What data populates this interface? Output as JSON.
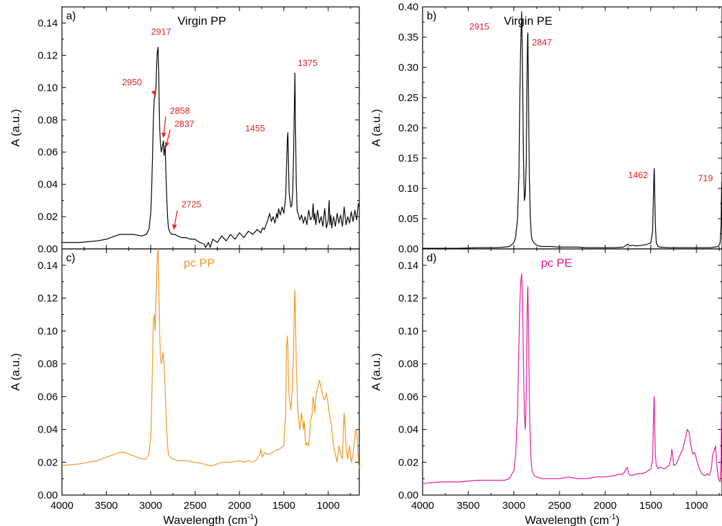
{
  "chart_data": [
    {
      "type": "line",
      "panel_label": "a)",
      "title": "Virgin PP",
      "xlabel": "",
      "ylabel": "A (a.u.)",
      "xlim": [
        4000,
        650
      ],
      "ylim": [
        0,
        0.15
      ],
      "x_ticks": [],
      "y_ticks": [
        "0.00",
        "0.02",
        "0.04",
        "0.06",
        "0.08",
        "0.10",
        "0.12",
        "0.14"
      ],
      "color": "#000000",
      "series": [
        {
          "x": [
            4000,
            3800,
            3600,
            3500,
            3400,
            3350,
            3300,
            3200,
            3100,
            3050,
            3020,
            3000,
            2990,
            2980,
            2970,
            2960,
            2950,
            2940,
            2935,
            2930,
            2925,
            2920,
            2917,
            2910,
            2905,
            2900,
            2890,
            2880,
            2870,
            2860,
            2858,
            2855,
            2850,
            2845,
            2840,
            2837,
            2830,
            2820,
            2810,
            2800,
            2780,
            2760,
            2740,
            2725,
            2700,
            2650,
            2600,
            2550,
            2500,
            2450,
            2400,
            2380,
            2350,
            2330,
            2300,
            2250,
            2200,
            2150,
            2100,
            2050,
            2000,
            1950,
            1900,
            1850,
            1800,
            1760,
            1740,
            1720,
            1700,
            1680,
            1660,
            1640,
            1620,
            1600,
            1580,
            1570,
            1560,
            1540,
            1520,
            1500,
            1480,
            1470,
            1460,
            1455,
            1450,
            1440,
            1430,
            1420,
            1410,
            1400,
            1390,
            1380,
            1375,
            1370,
            1360,
            1350,
            1340,
            1320,
            1300,
            1280,
            1260,
            1240,
            1220,
            1200,
            1180,
            1170,
            1160,
            1150,
            1140,
            1120,
            1100,
            1080,
            1060,
            1040,
            1020,
            1000,
            990,
            980,
            970,
            960,
            940,
            920,
            900,
            880,
            860,
            840,
            820,
            800,
            780,
            760,
            740,
            720,
            700,
            680,
            660,
            650
          ],
          "y": [
            0.004,
            0.004,
            0.005,
            0.006,
            0.008,
            0.009,
            0.009,
            0.009,
            0.008,
            0.009,
            0.012,
            0.022,
            0.035,
            0.055,
            0.08,
            0.093,
            0.095,
            0.1,
            0.11,
            0.118,
            0.122,
            0.124,
            0.125,
            0.11,
            0.09,
            0.075,
            0.066,
            0.06,
            0.063,
            0.066,
            0.067,
            0.064,
            0.058,
            0.06,
            0.062,
            0.064,
            0.05,
            0.032,
            0.02,
            0.013,
            0.01,
            0.009,
            0.009,
            0.009,
            0.008,
            0.007,
            0.007,
            0.006,
            0.006,
            0.004,
            0.003,
            0.001,
            0.004,
            0.001,
            0.006,
            0.004,
            0.008,
            0.005,
            0.009,
            0.006,
            0.01,
            0.007,
            0.011,
            0.009,
            0.012,
            0.01,
            0.013,
            0.012,
            0.015,
            0.018,
            0.022,
            0.017,
            0.02,
            0.016,
            0.022,
            0.019,
            0.025,
            0.021,
            0.026,
            0.022,
            0.032,
            0.05,
            0.068,
            0.072,
            0.06,
            0.035,
            0.03,
            0.026,
            0.027,
            0.035,
            0.06,
            0.095,
            0.109,
            0.08,
            0.04,
            0.024,
            0.022,
            0.018,
            0.021,
            0.016,
            0.02,
            0.015,
            0.024,
            0.018,
            0.02,
            0.028,
            0.018,
            0.022,
            0.015,
            0.024,
            0.016,
            0.02,
            0.014,
            0.025,
            0.013,
            0.018,
            0.03,
            0.015,
            0.021,
            0.013,
            0.02,
            0.014,
            0.022,
            0.016,
            0.021,
            0.014,
            0.026,
            0.015,
            0.02,
            0.016,
            0.023,
            0.017,
            0.024,
            0.018,
            0.028,
            0.026
          ]
        }
      ],
      "annotations": [
        {
          "text": "2917",
          "x": 2917,
          "y": 0.125,
          "arrow": false
        },
        {
          "text": "2950",
          "x": 2950,
          "y": 0.095,
          "arrow": true
        },
        {
          "text": "2858",
          "x": 2858,
          "y": 0.067,
          "arrow": true
        },
        {
          "text": "2837",
          "x": 2837,
          "y": 0.064,
          "arrow": true
        },
        {
          "text": "2725",
          "x": 2725,
          "y": 0.009,
          "arrow": true
        },
        {
          "text": "1455",
          "x": 1455,
          "y": 0.072,
          "arrow": false
        },
        {
          "text": "1375",
          "x": 1375,
          "y": 0.109,
          "arrow": false
        }
      ]
    },
    {
      "type": "line",
      "panel_label": "b)",
      "title": "Virgin PE",
      "xlabel": "",
      "ylabel": "A (a.u.)",
      "xlim": [
        4000,
        720
      ],
      "ylim": [
        0,
        0.4
      ],
      "x_ticks": [],
      "y_ticks": [
        "0.00",
        "0.05",
        "0.10",
        "0.15",
        "0.20",
        "0.25",
        "0.30",
        "0.35",
        "0.40"
      ],
      "color": "#000000",
      "series": [
        {
          "x": [
            4000,
            3800,
            3600,
            3400,
            3200,
            3100,
            3050,
            3000,
            2980,
            2960,
            2945,
            2935,
            2925,
            2915,
            2905,
            2895,
            2885,
            2875,
            2865,
            2855,
            2850,
            2847,
            2840,
            2830,
            2820,
            2810,
            2800,
            2780,
            2750,
            2700,
            2600,
            2500,
            2400,
            2300,
            2200,
            2100,
            2000,
            1900,
            1800,
            1750,
            1740,
            1720,
            1700,
            1650,
            1600,
            1550,
            1500,
            1480,
            1470,
            1465,
            1462,
            1458,
            1450,
            1440,
            1420,
            1400,
            1300,
            1200,
            1100,
            1000,
            950,
            900,
            850,
            800,
            760,
            740,
            730,
            725,
            722,
            720
          ],
          "y": [
            0.001,
            0.001,
            0.001,
            0.002,
            0.002,
            0.003,
            0.004,
            0.01,
            0.02,
            0.05,
            0.12,
            0.25,
            0.34,
            0.392,
            0.3,
            0.15,
            0.08,
            0.09,
            0.14,
            0.3,
            0.35,
            0.357,
            0.25,
            0.12,
            0.05,
            0.025,
            0.015,
            0.01,
            0.006,
            0.004,
            0.004,
            0.003,
            0.003,
            0.003,
            0.002,
            0.002,
            0.002,
            0.002,
            0.003,
            0.008,
            0.006,
            0.005,
            0.006,
            0.005,
            0.006,
            0.007,
            0.01,
            0.03,
            0.09,
            0.125,
            0.133,
            0.1,
            0.04,
            0.01,
            0.004,
            0.003,
            0.002,
            0.002,
            0.002,
            0.002,
            0.002,
            0.002,
            0.002,
            0.003,
            0.004,
            0.01,
            0.04,
            0.09,
            0.11,
            0.112
          ]
        }
      ],
      "annotations": [
        {
          "text": "2915",
          "x": 2915,
          "y": 0.392,
          "arrow": false
        },
        {
          "text": "2847",
          "x": 2847,
          "y": 0.357,
          "arrow": false
        },
        {
          "text": "1462",
          "x": 1462,
          "y": 0.133,
          "arrow": false
        },
        {
          "text": "719",
          "x": 719,
          "y": 0.112,
          "arrow": false
        }
      ]
    },
    {
      "type": "line",
      "panel_label": "c)",
      "title": "pc PP",
      "xlabel": "Wavelength (cm",
      "xlabel_sup": "-1",
      "xlabel_end": ")",
      "ylabel": "A (a.u.)",
      "xlim": [
        4000,
        650
      ],
      "ylim": [
        0,
        0.15
      ],
      "x_ticks": [
        "4000",
        "3500",
        "3000",
        "2500",
        "2000",
        "1500",
        "1000"
      ],
      "y_ticks": [
        "0.00",
        "0.02",
        "0.04",
        "0.06",
        "0.08",
        "0.10",
        "0.12",
        "0.14"
      ],
      "color": "#f39522",
      "series": [
        {
          "x": [
            4000,
            3800,
            3600,
            3500,
            3400,
            3350,
            3300,
            3200,
            3100,
            3050,
            3020,
            3000,
            2990,
            2980,
            2970,
            2960,
            2950,
            2940,
            2930,
            2920,
            2917,
            2910,
            2900,
            2890,
            2880,
            2870,
            2860,
            2850,
            2840,
            2830,
            2820,
            2810,
            2800,
            2780,
            2750,
            2700,
            2600,
            2500,
            2400,
            2350,
            2300,
            2250,
            2200,
            2100,
            2000,
            1950,
            1900,
            1850,
            1800,
            1770,
            1760,
            1750,
            1740,
            1720,
            1700,
            1650,
            1600,
            1550,
            1500,
            1480,
            1470,
            1460,
            1455,
            1450,
            1440,
            1420,
            1400,
            1390,
            1380,
            1375,
            1370,
            1360,
            1340,
            1320,
            1300,
            1280,
            1270,
            1260,
            1250,
            1240,
            1220,
            1200,
            1180,
            1170,
            1160,
            1150,
            1140,
            1120,
            1100,
            1090,
            1080,
            1060,
            1040,
            1020,
            1000,
            990,
            980,
            970,
            960,
            940,
            920,
            900,
            880,
            860,
            840,
            830,
            820,
            810,
            800,
            790,
            780,
            760,
            740,
            720,
            700,
            690,
            680,
            670,
            660,
            650
          ],
          "y": [
            0.018,
            0.019,
            0.021,
            0.023,
            0.025,
            0.026,
            0.026,
            0.024,
            0.022,
            0.022,
            0.025,
            0.035,
            0.05,
            0.08,
            0.105,
            0.11,
            0.1,
            0.12,
            0.14,
            0.15,
            0.15,
            0.13,
            0.1,
            0.085,
            0.08,
            0.083,
            0.087,
            0.08,
            0.07,
            0.055,
            0.04,
            0.03,
            0.025,
            0.023,
            0.022,
            0.021,
            0.021,
            0.02,
            0.019,
            0.018,
            0.018,
            0.019,
            0.02,
            0.02,
            0.021,
            0.02,
            0.021,
            0.02,
            0.022,
            0.025,
            0.028,
            0.025,
            0.023,
            0.026,
            0.025,
            0.025,
            0.027,
            0.028,
            0.03,
            0.05,
            0.09,
            0.097,
            0.09,
            0.075,
            0.06,
            0.052,
            0.07,
            0.09,
            0.12,
            0.125,
            0.11,
            0.08,
            0.05,
            0.04,
            0.05,
            0.04,
            0.045,
            0.035,
            0.03,
            0.032,
            0.03,
            0.045,
            0.05,
            0.06,
            0.055,
            0.05,
            0.06,
            0.065,
            0.07,
            0.068,
            0.065,
            0.06,
            0.058,
            0.062,
            0.055,
            0.05,
            0.048,
            0.045,
            0.04,
            0.03,
            0.025,
            0.02,
            0.03,
            0.025,
            0.022,
            0.04,
            0.05,
            0.04,
            0.03,
            0.025,
            0.022,
            0.03,
            0.02,
            0.025,
            0.035,
            0.04,
            0.04,
            0.03,
            0.02,
            0.016
          ]
        }
      ],
      "annotations": []
    },
    {
      "type": "line",
      "panel_label": "d)",
      "title": "pc PE",
      "xlabel": "Wavelength (cm",
      "xlabel_sup": "-1",
      "xlabel_end": ")",
      "ylabel": "A (a.u.)",
      "xlim": [
        4000,
        720
      ],
      "ylim": [
        0,
        0.15
      ],
      "x_ticks": [
        "4000",
        "3500",
        "3000",
        "2500",
        "2000",
        "1500",
        "1000"
      ],
      "y_ticks": [
        "0.00",
        "0.02",
        "0.04",
        "0.06",
        "0.08",
        "0.10",
        "0.12",
        "0.14"
      ],
      "color": "#e5179e",
      "series": [
        {
          "x": [
            4000,
            3800,
            3600,
            3400,
            3200,
            3100,
            3050,
            3000,
            2980,
            2960,
            2945,
            2935,
            2925,
            2915,
            2905,
            2895,
            2885,
            2875,
            2865,
            2855,
            2850,
            2847,
            2840,
            2830,
            2820,
            2810,
            2800,
            2780,
            2750,
            2700,
            2600,
            2500,
            2400,
            2300,
            2200,
            2100,
            2000,
            1900,
            1800,
            1760,
            1740,
            1730,
            1720,
            1700,
            1650,
            1600,
            1550,
            1500,
            1480,
            1470,
            1465,
            1462,
            1458,
            1450,
            1440,
            1420,
            1400,
            1350,
            1300,
            1280,
            1270,
            1260,
            1250,
            1220,
            1200,
            1150,
            1120,
            1100,
            1080,
            1060,
            1040,
            1020,
            1000,
            980,
            960,
            940,
            920,
            900,
            880,
            860,
            840,
            820,
            800,
            790,
            780,
            770,
            760,
            740,
            730,
            725,
            720
          ],
          "y": [
            0.007,
            0.008,
            0.008,
            0.009,
            0.009,
            0.009,
            0.01,
            0.015,
            0.025,
            0.05,
            0.09,
            0.115,
            0.13,
            0.135,
            0.12,
            0.08,
            0.05,
            0.04,
            0.06,
            0.11,
            0.125,
            0.127,
            0.1,
            0.06,
            0.03,
            0.02,
            0.015,
            0.012,
            0.011,
            0.01,
            0.01,
            0.01,
            0.011,
            0.01,
            0.01,
            0.011,
            0.011,
            0.012,
            0.013,
            0.017,
            0.013,
            0.012,
            0.012,
            0.012,
            0.013,
            0.013,
            0.014,
            0.016,
            0.022,
            0.045,
            0.058,
            0.06,
            0.045,
            0.025,
            0.018,
            0.016,
            0.017,
            0.016,
            0.018,
            0.022,
            0.028,
            0.025,
            0.018,
            0.019,
            0.022,
            0.028,
            0.035,
            0.04,
            0.038,
            0.03,
            0.025,
            0.026,
            0.022,
            0.018,
            0.015,
            0.013,
            0.012,
            0.012,
            0.013,
            0.012,
            0.015,
            0.025,
            0.028,
            0.03,
            0.02,
            0.015,
            0.01,
            0.008,
            0.02,
            0.05,
            0.057
          ]
        }
      ],
      "annotations": []
    }
  ]
}
